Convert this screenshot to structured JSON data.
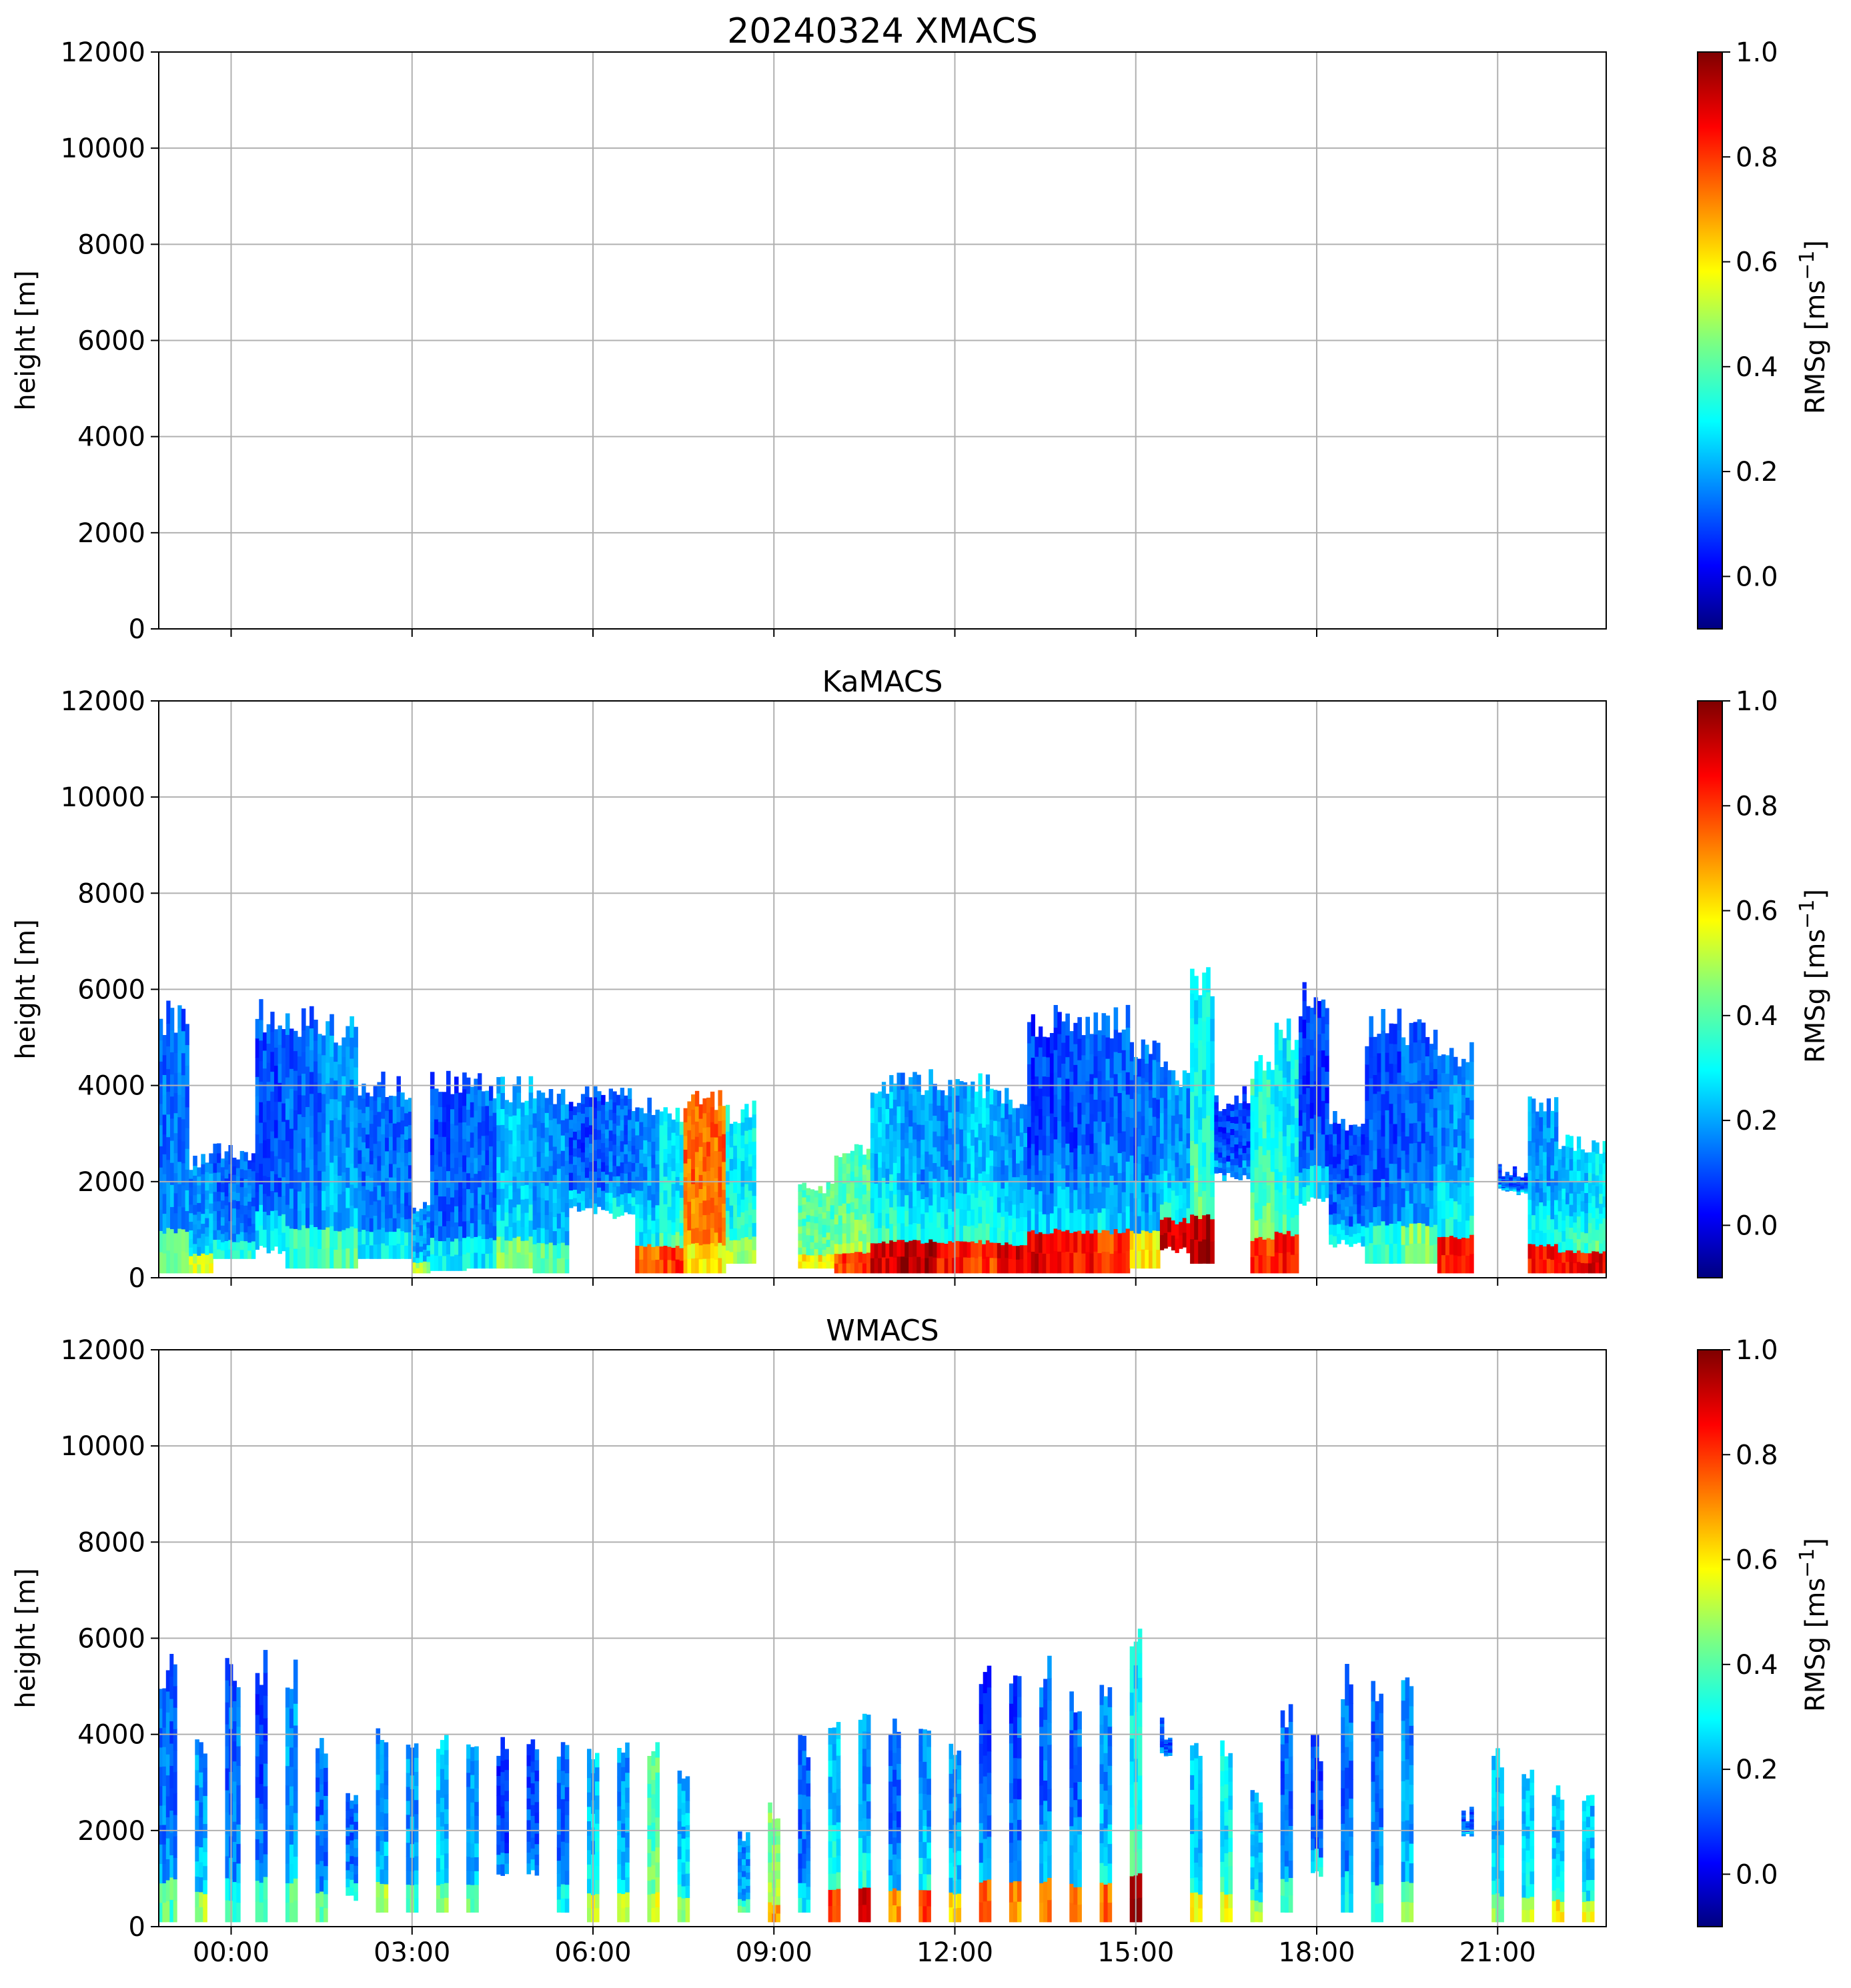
{
  "figure": {
    "title_text": "20240324 XMACS",
    "colormap": "jet",
    "grid": true
  },
  "chart_data": [
    {
      "type": "heatmap",
      "title": "20240324 XMACS",
      "ylabel": "height [m]",
      "ylim": [
        0,
        12000
      ],
      "yticks": [
        "0",
        "2000",
        "4000",
        "6000",
        "8000",
        "10000",
        "12000"
      ],
      "xlim_hours": [
        -1.2,
        22.8
      ],
      "xticks": [
        "00:00",
        "03:00",
        "06:00",
        "09:00",
        "12:00",
        "15:00",
        "18:00",
        "21:00"
      ],
      "x_ticklabels_visible": false,
      "colorbar": {
        "label": "RMSg [ms",
        "label_sup": "−1",
        "label_close": "]",
        "range": [
          -0.1,
          1.0
        ],
        "ticks": [
          "0.0",
          "0.2",
          "0.4",
          "0.6",
          "0.8",
          "1.0"
        ]
      },
      "has_data": false,
      "columns": []
    },
    {
      "type": "heatmap",
      "title": "KaMACS",
      "ylabel": "height [m]",
      "ylim": [
        0,
        12000
      ],
      "yticks": [
        "0",
        "2000",
        "4000",
        "6000",
        "8000",
        "10000",
        "12000"
      ],
      "xlim_hours": [
        -1.2,
        22.8
      ],
      "xticks": [
        "00:00",
        "03:00",
        "06:00",
        "09:00",
        "12:00",
        "15:00",
        "18:00",
        "21:00"
      ],
      "x_ticklabels_visible": false,
      "colorbar": {
        "label": "RMSg [ms",
        "label_sup": "−1",
        "label_close": "]",
        "range": [
          -0.1,
          1.0
        ],
        "ticks": [
          "0.0",
          "0.2",
          "0.4",
          "0.6",
          "0.8",
          "1.0"
        ]
      },
      "has_data": true,
      "columns_note": "each column: [start_h, end_h, top_m, base_m, low_level_value, upper_value]",
      "columns": [
        [
          -1.2,
          -0.7,
          5800,
          100,
          0.45,
          0.15
        ],
        [
          -0.7,
          -0.3,
          2600,
          100,
          0.55,
          0.2
        ],
        [
          -0.3,
          0.4,
          2800,
          400,
          0.35,
          0.15
        ],
        [
          0.4,
          0.9,
          5800,
          500,
          0.3,
          0.12
        ],
        [
          0.9,
          1.5,
          5800,
          200,
          0.35,
          0.15
        ],
        [
          1.5,
          2.1,
          5500,
          200,
          0.4,
          0.2
        ],
        [
          2.1,
          3.0,
          4300,
          400,
          0.3,
          0.15
        ],
        [
          3.0,
          3.3,
          1600,
          100,
          0.5,
          0.2
        ],
        [
          3.3,
          3.9,
          4400,
          150,
          0.3,
          0.12
        ],
        [
          3.9,
          4.4,
          4300,
          200,
          0.3,
          0.15
        ],
        [
          4.4,
          5.0,
          4200,
          200,
          0.45,
          0.25
        ],
        [
          5.0,
          5.6,
          4100,
          100,
          0.4,
          0.2
        ],
        [
          5.6,
          6.2,
          4100,
          1300,
          0.25,
          0.12
        ],
        [
          6.2,
          6.7,
          4000,
          1200,
          0.3,
          0.15
        ],
        [
          6.7,
          7.1,
          3900,
          100,
          0.75,
          0.2
        ],
        [
          7.1,
          7.5,
          3700,
          100,
          0.8,
          0.3
        ],
        [
          7.5,
          8.2,
          4000,
          100,
          0.6,
          0.75
        ],
        [
          8.2,
          8.7,
          3700,
          300,
          0.5,
          0.3
        ],
        [
          9.4,
          10.0,
          2000,
          200,
          0.6,
          0.4
        ],
        [
          10.0,
          10.6,
          2800,
          100,
          0.8,
          0.4
        ],
        [
          10.6,
          11.1,
          4400,
          100,
          0.9,
          0.25
        ],
        [
          11.1,
          11.7,
          4400,
          100,
          0.95,
          0.2
        ],
        [
          11.7,
          12.2,
          4300,
          100,
          0.85,
          0.2
        ],
        [
          12.2,
          12.7,
          4300,
          100,
          0.8,
          0.25
        ],
        [
          12.7,
          13.2,
          4000,
          100,
          0.9,
          0.2
        ],
        [
          13.2,
          13.7,
          5700,
          100,
          0.9,
          0.1
        ],
        [
          13.7,
          14.3,
          5800,
          100,
          0.85,
          0.12
        ],
        [
          14.3,
          14.9,
          5700,
          100,
          0.8,
          0.15
        ],
        [
          14.9,
          15.4,
          5000,
          200,
          0.6,
          0.15
        ],
        [
          15.4,
          15.9,
          4500,
          500,
          0.9,
          0.2
        ],
        [
          15.9,
          16.3,
          6500,
          300,
          0.95,
          0.3
        ],
        [
          16.3,
          16.9,
          4000,
          2000,
          0.2,
          0.1
        ],
        [
          16.9,
          17.3,
          4800,
          100,
          0.8,
          0.35
        ],
        [
          17.3,
          17.7,
          5500,
          100,
          0.85,
          0.3
        ],
        [
          17.7,
          18.2,
          6300,
          1500,
          0.3,
          0.1
        ],
        [
          18.2,
          18.8,
          3500,
          600,
          0.3,
          0.12
        ],
        [
          18.8,
          19.4,
          5600,
          300,
          0.35,
          0.12
        ],
        [
          19.4,
          20.0,
          5600,
          300,
          0.45,
          0.15
        ],
        [
          20.0,
          20.6,
          5000,
          100,
          0.85,
          0.2
        ],
        [
          21.0,
          21.5,
          2400,
          1700,
          0.25,
          0.12
        ],
        [
          21.5,
          22.0,
          3800,
          100,
          0.85,
          0.2
        ],
        [
          22.0,
          22.5,
          3000,
          100,
          0.85,
          0.25
        ],
        [
          22.5,
          22.8,
          3000,
          100,
          0.9,
          0.3
        ]
      ]
    },
    {
      "type": "heatmap",
      "title": "WMACS",
      "ylabel": "height [m]",
      "ylim": [
        0,
        12000
      ],
      "yticks": [
        "0",
        "2000",
        "4000",
        "6000",
        "8000",
        "10000",
        "12000"
      ],
      "xlim_hours": [
        -1.2,
        22.8
      ],
      "xticks": [
        "00:00",
        "03:00",
        "06:00",
        "09:00",
        "12:00",
        "15:00",
        "18:00",
        "21:00"
      ],
      "x_ticklabels_visible": true,
      "colorbar": {
        "label": "RMSg [ms",
        "label_sup": "−1",
        "label_close": "]",
        "range": [
          -0.1,
          1.0
        ],
        "ticks": [
          "0.0",
          "0.2",
          "0.4",
          "0.6",
          "0.8",
          "1.0"
        ]
      },
      "has_data": true,
      "columns_note": "each column: [start_h, end_h, top_m, base_m, low_level_value, upper_value]",
      "columns": [
        [
          -1.2,
          -0.9,
          5700,
          100,
          0.4,
          0.15
        ],
        [
          -0.6,
          -0.4,
          4000,
          100,
          0.5,
          0.2
        ],
        [
          -0.1,
          0.15,
          5700,
          100,
          0.35,
          0.15
        ],
        [
          0.4,
          0.6,
          5800,
          100,
          0.35,
          0.12
        ],
        [
          0.9,
          1.1,
          5700,
          100,
          0.4,
          0.2
        ],
        [
          1.4,
          1.6,
          4100,
          100,
          0.4,
          0.15
        ],
        [
          1.9,
          2.1,
          3000,
          500,
          0.3,
          0.15
        ],
        [
          2.4,
          2.6,
          4300,
          300,
          0.5,
          0.2
        ],
        [
          2.9,
          3.1,
          4200,
          300,
          0.4,
          0.2
        ],
        [
          3.4,
          3.6,
          4000,
          300,
          0.45,
          0.25
        ],
        [
          3.9,
          4.1,
          4000,
          300,
          0.4,
          0.2
        ],
        [
          4.4,
          4.6,
          4000,
          1000,
          0.2,
          0.1
        ],
        [
          4.9,
          5.1,
          4000,
          1000,
          0.2,
          0.12
        ],
        [
          5.4,
          5.6,
          4000,
          300,
          0.3,
          0.15
        ],
        [
          5.9,
          6.1,
          4000,
          100,
          0.55,
          0.25
        ],
        [
          6.4,
          6.6,
          3900,
          100,
          0.5,
          0.2
        ],
        [
          6.9,
          7.1,
          4000,
          100,
          0.55,
          0.4
        ],
        [
          7.4,
          7.6,
          3500,
          100,
          0.45,
          0.25
        ],
        [
          8.4,
          8.6,
          2000,
          300,
          0.4,
          0.2
        ],
        [
          8.9,
          9.1,
          2600,
          100,
          0.7,
          0.45
        ],
        [
          9.4,
          9.6,
          4000,
          300,
          0.3,
          0.15
        ],
        [
          9.9,
          10.1,
          4500,
          100,
          0.8,
          0.25
        ],
        [
          10.4,
          10.6,
          4500,
          100,
          0.9,
          0.2
        ],
        [
          10.9,
          11.1,
          4500,
          100,
          0.7,
          0.15
        ],
        [
          11.4,
          11.6,
          4500,
          100,
          0.8,
          0.2
        ],
        [
          11.9,
          12.1,
          4000,
          100,
          0.6,
          0.2
        ],
        [
          12.4,
          12.6,
          5500,
          100,
          0.75,
          0.1
        ],
        [
          12.9,
          13.1,
          5800,
          100,
          0.7,
          0.12
        ],
        [
          13.4,
          13.6,
          5700,
          100,
          0.75,
          0.15
        ],
        [
          13.9,
          14.1,
          5000,
          100,
          0.7,
          0.15
        ],
        [
          14.4,
          14.6,
          5200,
          100,
          0.75,
          0.2
        ],
        [
          14.9,
          15.1,
          6500,
          100,
          0.95,
          0.3
        ],
        [
          15.4,
          15.6,
          4500,
          3500,
          0.2,
          0.12
        ],
        [
          15.9,
          16.1,
          4000,
          100,
          0.6,
          0.25
        ],
        [
          16.4,
          16.6,
          4000,
          100,
          0.6,
          0.3
        ],
        [
          16.9,
          17.1,
          3000,
          100,
          0.5,
          0.25
        ],
        [
          17.4,
          17.6,
          4800,
          300,
          0.35,
          0.15
        ],
        [
          17.9,
          18.1,
          4000,
          1000,
          0.3,
          0.12
        ],
        [
          18.4,
          18.6,
          5500,
          300,
          0.3,
          0.15
        ],
        [
          18.9,
          19.1,
          5400,
          100,
          0.4,
          0.15
        ],
        [
          19.4,
          19.6,
          5600,
          100,
          0.45,
          0.2
        ],
        [
          20.4,
          20.6,
          2500,
          1800,
          0.25,
          0.12
        ],
        [
          20.9,
          21.1,
          3800,
          100,
          0.45,
          0.25
        ],
        [
          21.4,
          21.6,
          3500,
          100,
          0.5,
          0.25
        ],
        [
          21.9,
          22.1,
          3000,
          100,
          0.6,
          0.25
        ],
        [
          22.4,
          22.6,
          3000,
          100,
          0.55,
          0.25
        ]
      ]
    }
  ]
}
